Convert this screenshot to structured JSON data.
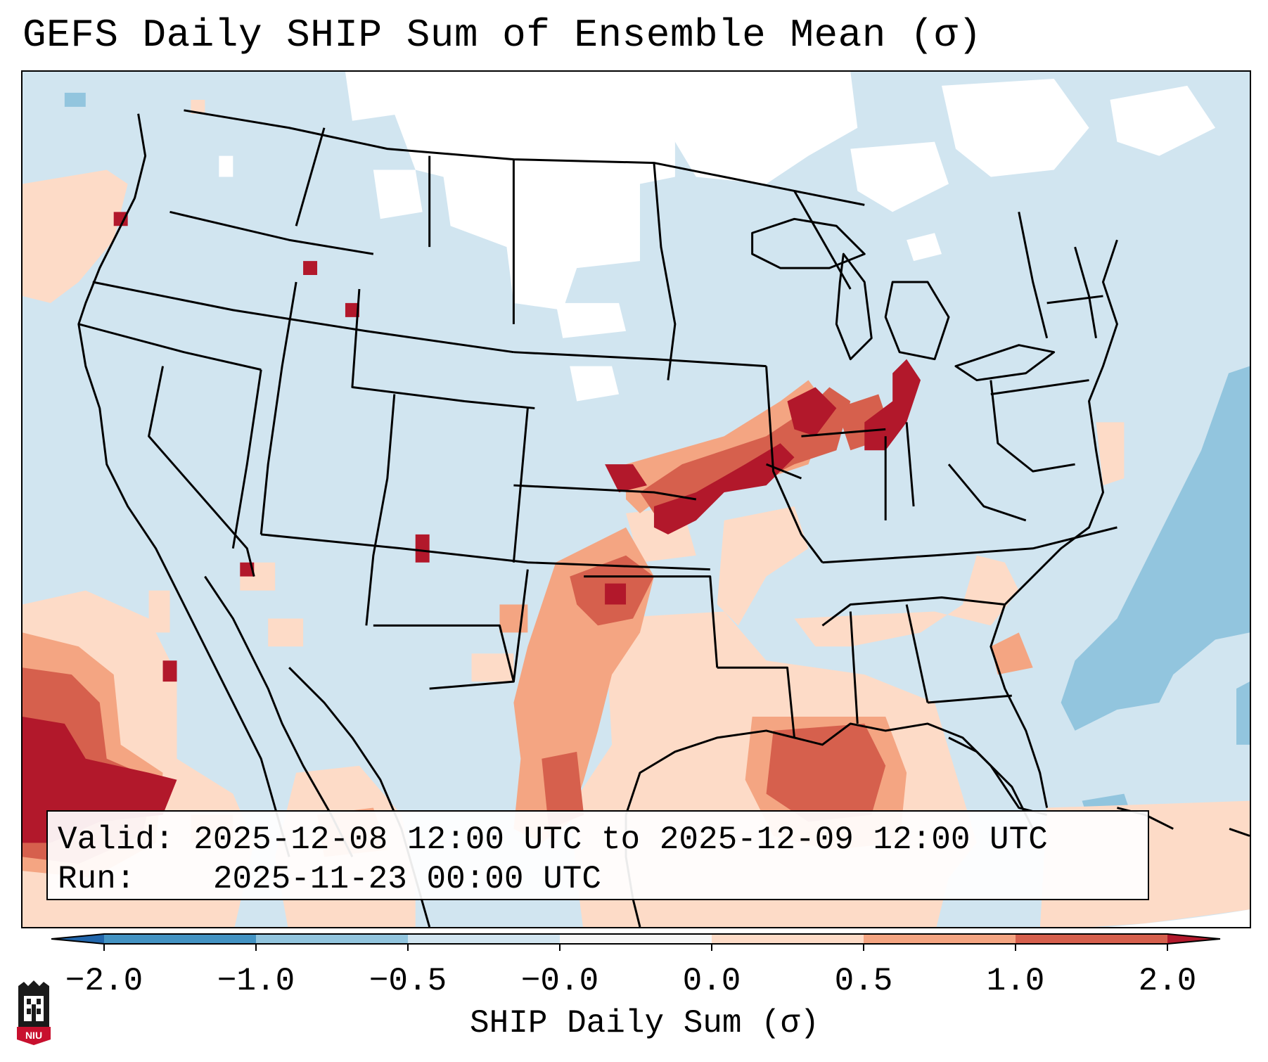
{
  "title": "GEFS Daily SHIP Sum of Ensemble Mean (σ)",
  "info": {
    "valid_label": "Valid:",
    "valid_value": "2025-12-08 12:00 UTC to 2025-12-09 12:00 UTC",
    "run_label": "Run:",
    "run_value": "2025-11-23 00:00 UTC"
  },
  "colorbar": {
    "label": "SHIP Daily Sum (σ)",
    "ticks": [
      "−2.0",
      "−1.0",
      "−0.5",
      "−0.0",
      "0.0",
      "0.5",
      "1.0",
      "2.0"
    ],
    "colors": [
      "#4393c3",
      "#92c5de",
      "#d1e5f0",
      "#f7f7f7",
      "#fddbc7",
      "#f4a582",
      "#d6604d",
      "#b2182b"
    ],
    "extend_low_color": "#2166ac",
    "extend_high_color": "#b2182b"
  },
  "logo": {
    "text": "NIU",
    "color": "#c8102e"
  },
  "map": {
    "ocean_color": "#d1e5f0",
    "snow_color": "#ffffff",
    "outline_color": "#000000"
  }
}
